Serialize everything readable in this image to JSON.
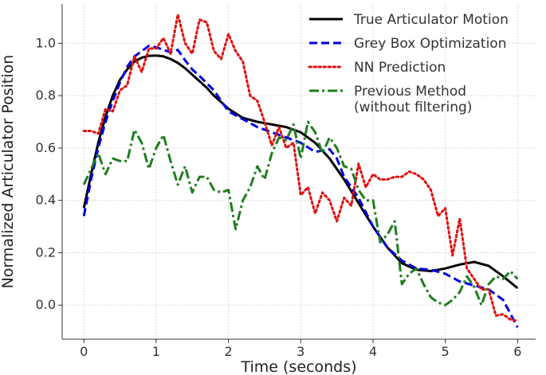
{
  "chart_data": {
    "type": "line",
    "title": "",
    "xlabel": "Time (seconds)",
    "ylabel": "Normalized Articulator Position",
    "xlim": [
      -0.3,
      6.25
    ],
    "ylim": [
      -0.13,
      1.15
    ],
    "xticks": [
      0,
      1,
      2,
      3,
      4,
      5,
      6
    ],
    "yticks": [
      0.0,
      0.2,
      0.4,
      0.6,
      0.8,
      1.0
    ],
    "xtick_labels": [
      "0",
      "1",
      "2",
      "3",
      "4",
      "5",
      "6"
    ],
    "ytick_labels": [
      "0.0",
      "0.2",
      "0.4",
      "0.6",
      "0.8",
      "1.0"
    ],
    "grid": true,
    "legend_position": "top-right",
    "series": [
      {
        "name": "True Articulator Motion",
        "color": "#000000",
        "dash": "solid",
        "x": [
          0,
          0.1,
          0.2,
          0.3,
          0.4,
          0.5,
          0.6,
          0.7,
          0.8,
          0.9,
          1.0,
          1.1,
          1.2,
          1.3,
          1.4,
          1.5,
          1.6,
          1.7,
          1.8,
          1.9,
          2.0,
          2.2,
          2.4,
          2.6,
          2.8,
          3.0,
          3.2,
          3.4,
          3.6,
          3.8,
          4.0,
          4.2,
          4.4,
          4.6,
          4.8,
          5.0,
          5.2,
          5.4,
          5.6,
          5.8,
          6.0
        ],
        "y": [
          0.37,
          0.5,
          0.62,
          0.72,
          0.8,
          0.86,
          0.9,
          0.93,
          0.945,
          0.952,
          0.953,
          0.95,
          0.94,
          0.925,
          0.905,
          0.88,
          0.855,
          0.83,
          0.8,
          0.775,
          0.75,
          0.715,
          0.7,
          0.69,
          0.68,
          0.66,
          0.62,
          0.56,
          0.48,
          0.39,
          0.3,
          0.22,
          0.16,
          0.135,
          0.13,
          0.14,
          0.155,
          0.165,
          0.15,
          0.11,
          0.065
        ]
      },
      {
        "name": "Grey Box Optimization",
        "color": "#0000e0",
        "dash": "dashed",
        "x": [
          0,
          0.1,
          0.2,
          0.3,
          0.4,
          0.5,
          0.6,
          0.7,
          0.8,
          0.9,
          1.0,
          1.1,
          1.2,
          1.3,
          1.4,
          1.5,
          1.6,
          1.8,
          2.0,
          2.2,
          2.4,
          2.6,
          2.8,
          3.0,
          3.2,
          3.4,
          3.5,
          3.6,
          3.8,
          4.0,
          4.2,
          4.4,
          4.6,
          4.8,
          5.0,
          5.2,
          5.4,
          5.6,
          5.8,
          6.0
        ],
        "y": [
          0.34,
          0.48,
          0.6,
          0.7,
          0.78,
          0.85,
          0.91,
          0.95,
          0.97,
          0.99,
          0.985,
          0.975,
          0.965,
          0.975,
          0.935,
          0.9,
          0.875,
          0.82,
          0.74,
          0.71,
          0.68,
          0.66,
          0.64,
          0.62,
          0.585,
          0.595,
          0.56,
          0.49,
          0.41,
          0.3,
          0.22,
          0.17,
          0.14,
          0.135,
          0.12,
          0.09,
          0.075,
          0.06,
          0.02,
          -0.085
        ]
      },
      {
        "name": "NN Prediction",
        "color": "#e01010",
        "dash": "dotted",
        "x": [
          0,
          0.1,
          0.2,
          0.3,
          0.4,
          0.5,
          0.6,
          0.7,
          0.8,
          0.9,
          1.0,
          1.1,
          1.2,
          1.3,
          1.4,
          1.5,
          1.6,
          1.7,
          1.8,
          1.9,
          2.0,
          2.1,
          2.2,
          2.3,
          2.4,
          2.5,
          2.6,
          2.7,
          2.8,
          2.9,
          3.0,
          3.1,
          3.2,
          3.3,
          3.4,
          3.5,
          3.6,
          3.7,
          3.8,
          3.9,
          4.0,
          4.1,
          4.2,
          4.3,
          4.4,
          4.5,
          4.6,
          4.7,
          4.8,
          4.9,
          5.0,
          5.1,
          5.2,
          5.3,
          5.4,
          5.5,
          5.6,
          5.7,
          5.8,
          5.9,
          6.0
        ],
        "y": [
          0.665,
          0.665,
          0.655,
          0.75,
          0.74,
          0.82,
          0.84,
          0.95,
          0.89,
          0.98,
          0.98,
          1.02,
          0.96,
          1.11,
          1.0,
          0.96,
          1.09,
          1.08,
          0.97,
          0.94,
          1.035,
          0.97,
          0.93,
          0.8,
          0.78,
          0.7,
          0.61,
          0.68,
          0.6,
          0.62,
          0.42,
          0.45,
          0.35,
          0.43,
          0.4,
          0.32,
          0.41,
          0.38,
          0.54,
          0.45,
          0.5,
          0.48,
          0.48,
          0.49,
          0.49,
          0.51,
          0.5,
          0.48,
          0.44,
          0.34,
          0.37,
          0.19,
          0.33,
          0.14,
          0.1,
          0.06,
          0.06,
          -0.04,
          -0.035,
          -0.055,
          -0.06
        ]
      },
      {
        "name": "Previous Method\n(without filtering)",
        "color": "#1e7d1e",
        "dash": "dashdot",
        "x": [
          0,
          0.1,
          0.2,
          0.3,
          0.4,
          0.5,
          0.6,
          0.7,
          0.8,
          0.9,
          1.0,
          1.1,
          1.2,
          1.3,
          1.4,
          1.5,
          1.6,
          1.7,
          1.8,
          1.9,
          2.0,
          2.1,
          2.2,
          2.3,
          2.4,
          2.5,
          2.6,
          2.7,
          2.8,
          2.9,
          3.0,
          3.1,
          3.2,
          3.3,
          3.4,
          3.5,
          3.6,
          3.7,
          3.8,
          3.9,
          4.0,
          4.1,
          4.2,
          4.3,
          4.4,
          4.5,
          4.6,
          4.7,
          4.8,
          4.9,
          5.0,
          5.1,
          5.2,
          5.3,
          5.4,
          5.5,
          5.6,
          5.7,
          5.8,
          5.9,
          6.0
        ],
        "y": [
          0.46,
          0.52,
          0.58,
          0.5,
          0.56,
          0.55,
          0.55,
          0.67,
          0.62,
          0.52,
          0.6,
          0.65,
          0.55,
          0.46,
          0.53,
          0.43,
          0.49,
          0.49,
          0.44,
          0.43,
          0.44,
          0.29,
          0.4,
          0.45,
          0.53,
          0.48,
          0.58,
          0.64,
          0.63,
          0.69,
          0.56,
          0.7,
          0.66,
          0.58,
          0.64,
          0.6,
          0.53,
          0.52,
          0.44,
          0.4,
          0.4,
          0.24,
          0.27,
          0.32,
          0.08,
          0.12,
          0.14,
          0.08,
          0.03,
          0.01,
          0.0,
          0.02,
          0.05,
          0.11,
          0.07,
          0.0,
          0.08,
          0.11,
          0.1,
          0.13,
          0.1
        ]
      }
    ]
  }
}
